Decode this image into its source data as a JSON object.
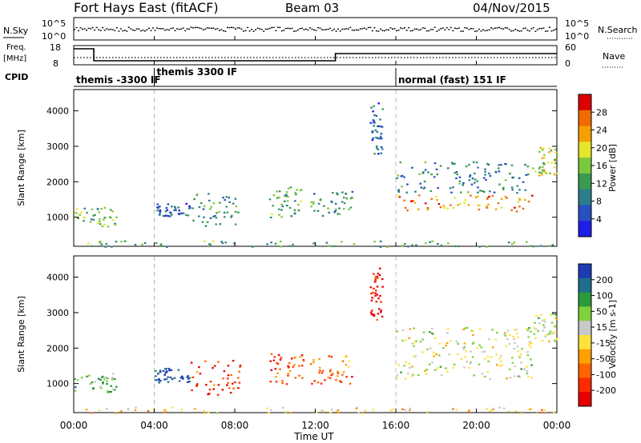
{
  "header": {
    "station": "Fort Hays East (fitACF)",
    "beam": "Beam 03",
    "date": "04/Nov/2015"
  },
  "noise_panel": {
    "left_label": "N.Sky",
    "right_label": "N.Search",
    "y_ticks_left": [
      "10^5",
      "10^0"
    ],
    "y_ticks_right": [
      "10^5",
      "10^0"
    ]
  },
  "freq_panel": {
    "left_label_1": "Freq.",
    "left_label_2": "[MHz]",
    "right_label": "Nave",
    "y_ticks_left": [
      "18",
      "8"
    ],
    "y_ticks_right": [
      "60",
      "0"
    ],
    "freq_steps": [
      {
        "from_hour": 0.0,
        "to_hour": 1.0,
        "mhz": 18
      },
      {
        "from_hour": 1.0,
        "to_hour": 13.0,
        "mhz": 10.5
      },
      {
        "from_hour": 13.0,
        "to_hour": 24.0,
        "mhz": 15
      }
    ]
  },
  "cpid_panel": {
    "label": "CPID",
    "modes": [
      {
        "start_hour": 0.0,
        "name": "themis -3300 IF"
      },
      {
        "start_hour": 4.0,
        "name": "themis 3300 IF"
      },
      {
        "start_hour": 16.0,
        "name": "normal (fast) 151 IF"
      }
    ]
  },
  "colors": {
    "power_scale": [
      "#1e1ee6",
      "#2850c0",
      "#2d7d8c",
      "#3a9a50",
      "#7ac83c",
      "#e6e62a",
      "#f5a000",
      "#f06a00",
      "#dc0000"
    ],
    "velocity_scale": [
      "#1c3cb4",
      "#1f6e8c",
      "#2a9a3a",
      "#7ed23a",
      "#c8c8c8",
      "#ffe23c",
      "#ffa000",
      "#ff6400",
      "#ff2a00",
      "#e60000"
    ]
  },
  "chart_data": [
    {
      "type": "heatmap",
      "name": "power",
      "ylabel": "Slant Range [km]",
      "xlim": [
        0,
        24
      ],
      "ylim": [
        180,
        4600
      ],
      "y_ticks": [
        1000,
        2000,
        3000,
        4000
      ],
      "colorbar": {
        "label": "Power [dB]",
        "range": [
          0,
          32
        ],
        "ticks": [
          "28",
          "24",
          "20",
          "16",
          "12",
          "8",
          "4"
        ]
      },
      "regions": [
        {
          "x0": 0.0,
          "x1": 2.1,
          "y0": 750,
          "y1": 1300,
          "level": 0.45
        },
        {
          "x0": 4.0,
          "x1": 5.8,
          "y0": 1050,
          "y1": 1450,
          "level": 0.2
        },
        {
          "x0": 5.8,
          "x1": 8.3,
          "y0": 700,
          "y1": 1700,
          "level": 0.35
        },
        {
          "x0": 9.7,
          "x1": 11.4,
          "y0": 1000,
          "y1": 1900,
          "level": 0.4
        },
        {
          "x0": 11.7,
          "x1": 13.8,
          "y0": 1000,
          "y1": 1800,
          "level": 0.35
        },
        {
          "x0": 14.7,
          "x1": 15.3,
          "y0": 2800,
          "y1": 4300,
          "level": 0.2
        },
        {
          "x0": 16.0,
          "x1": 22.8,
          "y0": 1150,
          "y1": 1650,
          "level": 0.75
        },
        {
          "x0": 16.0,
          "x1": 22.8,
          "y0": 1700,
          "y1": 2600,
          "level": 0.3
        },
        {
          "x0": 22.8,
          "x1": 24.0,
          "y0": 2200,
          "y1": 3000,
          "level": 0.55
        },
        {
          "x0": 0.5,
          "x1": 24.0,
          "y0": 180,
          "y1": 350,
          "level": 0.4
        }
      ]
    },
    {
      "type": "heatmap",
      "name": "velocity",
      "xlabel": "Time UT",
      "ylabel": "Slant Range [km]",
      "xlim": [
        0,
        24
      ],
      "ylim": [
        180,
        4600
      ],
      "x_ticks": [
        "00:00",
        "04:00",
        "08:00",
        "12:00",
        "16:00",
        "20:00",
        "00:00"
      ],
      "y_ticks": [
        1000,
        2000,
        3000,
        4000
      ],
      "colorbar": {
        "label": "Velocity [m s-1]",
        "ticks": [
          "200",
          "100",
          "50",
          "15",
          "-15",
          "-50",
          "-100",
          "-200"
        ]
      },
      "regions": [
        {
          "x0": 0.0,
          "x1": 2.1,
          "y0": 750,
          "y1": 1300,
          "level": 0.3
        },
        {
          "x0": 4.0,
          "x1": 5.8,
          "y0": 1050,
          "y1": 1450,
          "level": 0.05
        },
        {
          "x0": 5.8,
          "x1": 8.3,
          "y0": 700,
          "y1": 1700,
          "level": 0.85
        },
        {
          "x0": 9.7,
          "x1": 11.4,
          "y0": 1000,
          "y1": 1900,
          "level": 0.8
        },
        {
          "x0": 11.7,
          "x1": 13.8,
          "y0": 1000,
          "y1": 1800,
          "level": 0.75
        },
        {
          "x0": 14.7,
          "x1": 15.3,
          "y0": 2800,
          "y1": 4300,
          "level": 0.95
        },
        {
          "x0": 16.0,
          "x1": 22.8,
          "y0": 1150,
          "y1": 1650,
          "level": 0.45
        },
        {
          "x0": 16.0,
          "x1": 22.8,
          "y0": 1700,
          "y1": 2600,
          "level": 0.45
        },
        {
          "x0": 22.8,
          "x1": 24.0,
          "y0": 2200,
          "y1": 3000,
          "level": 0.45
        },
        {
          "x0": 0.5,
          "x1": 24.0,
          "y0": 180,
          "y1": 350,
          "level": 0.55
        }
      ]
    }
  ]
}
